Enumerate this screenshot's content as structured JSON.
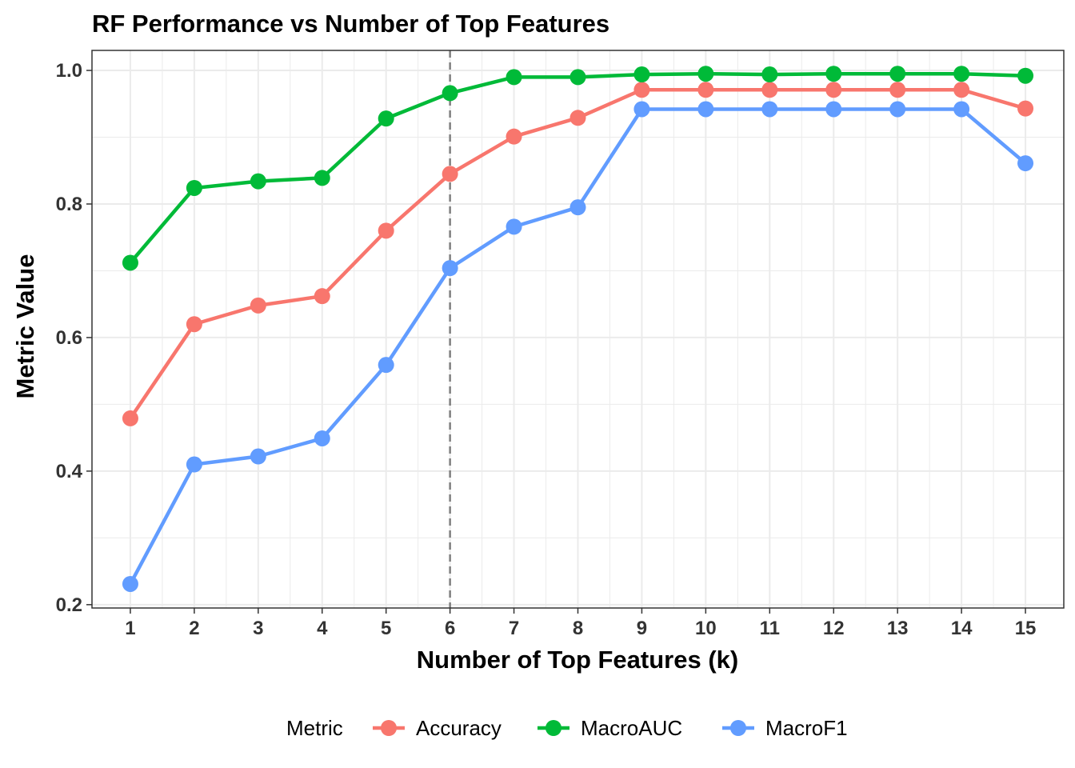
{
  "chart_data": {
    "type": "line",
    "title": "RF Performance vs Number of Top Features",
    "xlabel": "Number of Top Features (k)",
    "ylabel": "Metric Value",
    "x": [
      1,
      2,
      3,
      4,
      5,
      6,
      7,
      8,
      9,
      10,
      11,
      12,
      13,
      14,
      15
    ],
    "x_tick_labels": [
      "1",
      "2",
      "3",
      "4",
      "5",
      "6",
      "7",
      "8",
      "9",
      "10",
      "11",
      "12",
      "13",
      "14",
      "15"
    ],
    "y_ticks": [
      0.2,
      0.4,
      0.6,
      0.8,
      1.0
    ],
    "y_tick_labels": [
      "0.2",
      "0.4",
      "0.6",
      "0.8",
      "1.0"
    ],
    "xlim": [
      0.4,
      15.6
    ],
    "ylim": [
      0.195,
      1.03
    ],
    "grid": true,
    "reference_line": {
      "x": 6,
      "style": "dashed",
      "color": "#7f7f7f"
    },
    "legend": {
      "title": "Metric",
      "position": "bottom"
    },
    "series": [
      {
        "name": "Accuracy",
        "color": "#F8766D",
        "values": [
          0.479,
          0.62,
          0.648,
          0.662,
          0.76,
          0.845,
          0.901,
          0.929,
          0.971,
          0.971,
          0.971,
          0.971,
          0.971,
          0.971,
          0.943
        ]
      },
      {
        "name": "MacroAUC",
        "color": "#00BA38",
        "values": [
          0.712,
          0.824,
          0.834,
          0.839,
          0.928,
          0.966,
          0.99,
          0.99,
          0.994,
          0.995,
          0.994,
          0.995,
          0.995,
          0.995,
          0.992
        ]
      },
      {
        "name": "MacroF1",
        "color": "#619CFF",
        "values": [
          0.231,
          0.41,
          0.422,
          0.449,
          0.559,
          0.704,
          0.766,
          0.795,
          0.942,
          0.942,
          0.942,
          0.942,
          0.942,
          0.942,
          0.861
        ]
      }
    ]
  }
}
